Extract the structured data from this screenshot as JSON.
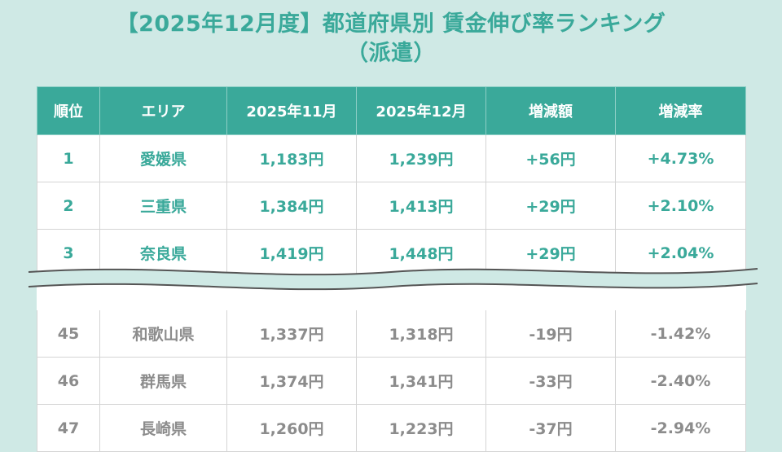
{
  "title": {
    "line1": "【2025年12月度】都道府県別 賃金伸び率ランキング",
    "line2": "（派遣）"
  },
  "table": {
    "headers": [
      "順位",
      "エリア",
      "2025年11月",
      "2025年12月",
      "増減額",
      "増減率"
    ],
    "top_rows": [
      [
        "1",
        "愛媛県",
        "1,183円",
        "1,239円",
        "+56円",
        "+4.73%"
      ],
      [
        "2",
        "三重県",
        "1,384円",
        "1,413円",
        "+29円",
        "+2.10%"
      ],
      [
        "3",
        "奈良県",
        "1,419円",
        "1,448円",
        "+29円",
        "+2.04%"
      ]
    ],
    "bottom_rows": [
      [
        "45",
        "和歌山県",
        "1,337円",
        "1,318円",
        "-19円",
        "-1.42%"
      ],
      [
        "46",
        "群馬県",
        "1,374円",
        "1,341円",
        "-33円",
        "-2.40%"
      ],
      [
        "47",
        "長崎県",
        "1,260円",
        "1,223円",
        "-37円",
        "-2.94%"
      ]
    ]
  },
  "colors": {
    "accent": "#3aa99a",
    "background": "#cfe9e5",
    "muted_text": "#8c8c8c"
  }
}
